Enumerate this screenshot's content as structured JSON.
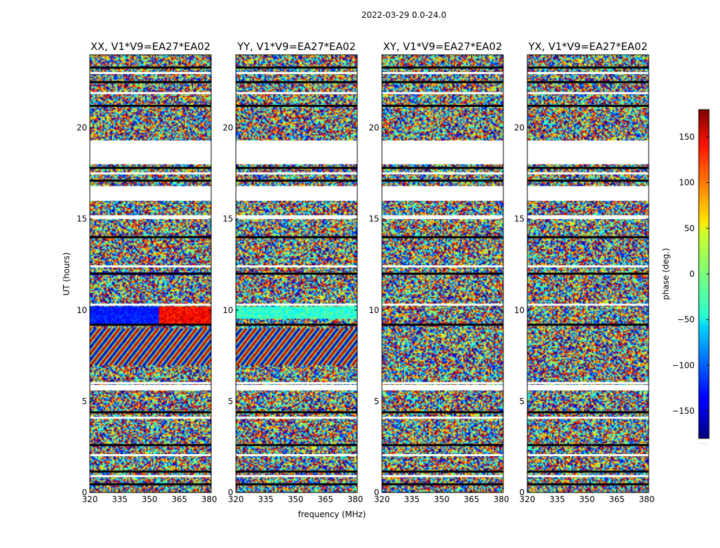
{
  "chart_data": {
    "type": "heatmap",
    "suptitle": "2022-03-29 0.0-24.0",
    "xlabel": "frequency (MHz)",
    "ylabel": "UT (hours)",
    "xlim": [
      320,
      381
    ],
    "ylim": [
      0,
      24
    ],
    "xticks": [
      320,
      335,
      350,
      365,
      380
    ],
    "yticks": [
      0,
      5,
      10,
      15,
      20
    ],
    "panels": [
      {
        "title": "XX, V1*V9=EA27*EA02",
        "polarization": "XX"
      },
      {
        "title": "YY, V1*V9=EA27*EA02",
        "polarization": "YY"
      },
      {
        "title": "XY, V1*V9=EA27*EA02",
        "polarization": "XY"
      },
      {
        "title": "YX, V1*V9=EA27*EA02",
        "polarization": "YX"
      }
    ],
    "colorbar": {
      "label": "phase (deg.)",
      "range": [
        -180,
        180
      ],
      "ticks": [
        -150,
        -100,
        -50,
        0,
        50,
        100,
        150
      ],
      "tick_labels": [
        "−150",
        "−100",
        "−50",
        "0",
        "50",
        "100",
        "150"
      ],
      "colormap": "jet",
      "offset_text": "......"
    },
    "blank_ut_ranges": [
      [
        18.0,
        19.3
      ],
      [
        16.0,
        16.8
      ],
      [
        5.6,
        5.9
      ],
      [
        15.1,
        15.2
      ]
    ],
    "flagged_ut_lines": [
      0.45,
      0.9,
      1.15,
      2.05,
      2.6,
      4.1,
      4.4,
      6.0,
      9.2,
      10.3,
      12.0,
      12.4,
      14.0,
      15.05,
      17.1,
      17.5,
      17.8,
      18.1,
      21.2,
      21.9,
      22.5,
      23.0,
      23.3
    ]
  }
}
